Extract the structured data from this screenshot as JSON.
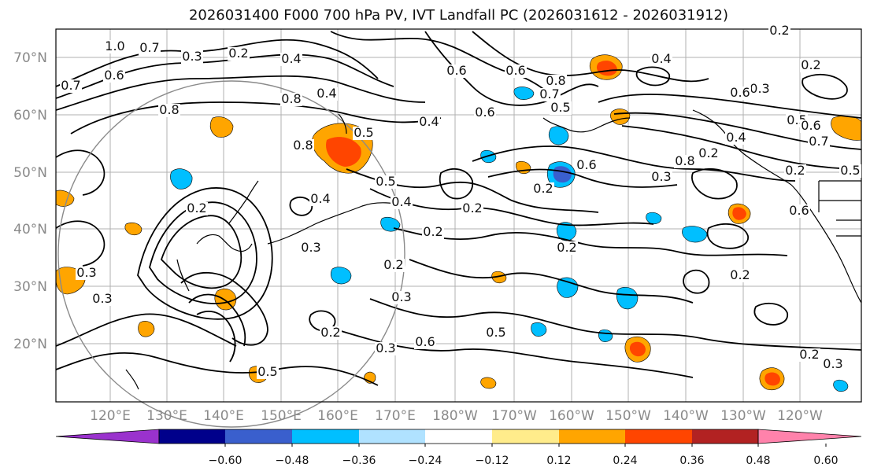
{
  "title": "2026031400 F000 700 hPa PV, IVT Landfall PC (2026031612 - 2026031912)",
  "map": {
    "lat_labels": [
      "70°N",
      "60°N",
      "50°N",
      "40°N",
      "30°N",
      "20°N"
    ],
    "lon_labels": [
      "120°E",
      "130°E",
      "140°E",
      "150°E",
      "160°E",
      "170°E",
      "180°W",
      "170°W",
      "160°W",
      "150°W",
      "140°W",
      "130°W",
      "120°W"
    ],
    "contour_color": "#000000",
    "grid_color": "#b0b0b0",
    "contour_labels": [
      "1.0",
      "0.7",
      "0.3",
      "0.2",
      "0.4",
      "0.6",
      "0.7",
      "0.8",
      "0.4",
      "0.8",
      "0.4",
      "0.5",
      "0.6",
      "0.6",
      "0.8",
      "0.7",
      "0.8",
      "0.6",
      "0.5",
      "0.4",
      "0.2",
      "0.3",
      "0.2",
      "0.6",
      "0.5",
      "0.6",
      "0.7",
      "0.8",
      "0.2",
      "0.4",
      "0.2",
      "0.5",
      "0.6",
      "0.6",
      "0.2",
      "0.3",
      "0.2",
      "0.4",
      "0.5",
      "0.2",
      "0.2",
      "0.4",
      "0.3",
      "0.2",
      "0.3",
      "0.2",
      "0.2",
      "0.3",
      "0.6",
      "0.5",
      "0.2",
      "0.3",
      "0.5",
      "0.2",
      "0.3",
      "0.3"
    ]
  },
  "colorbar": {
    "ticks": [
      "−0.60",
      "−0.48",
      "−0.36",
      "−0.24",
      "−0.12",
      "0.12",
      "0.24",
      "0.36",
      "0.48",
      "0.60"
    ],
    "colors": [
      "#9a32cd",
      "#00008b",
      "#3a5fcd",
      "#00bfff",
      "#b0e2ff",
      "#ffffff",
      "#ffec8b",
      "#ffa500",
      "#ff4500",
      "#b22222",
      "#ff82ab"
    ]
  }
}
